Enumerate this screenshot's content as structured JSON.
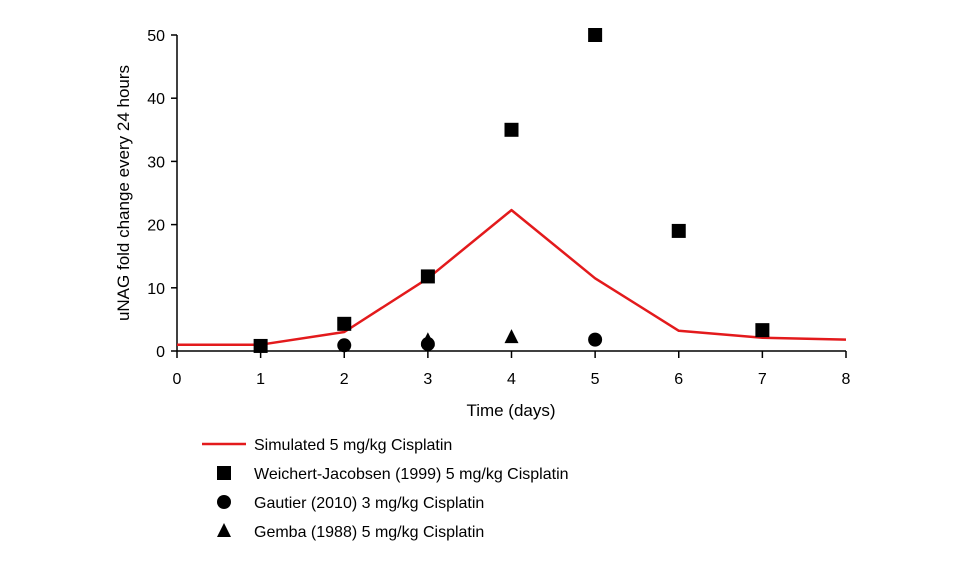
{
  "chart_data": {
    "type": "scatter",
    "title": "",
    "xlabel": "Time (days)",
    "ylabel": "uNAG fold change every 24 hours",
    "xlim": [
      0,
      8
    ],
    "ylim": [
      0,
      50
    ],
    "xticks": [
      "0",
      "1",
      "2",
      "3",
      "4",
      "5",
      "6",
      "7",
      "8"
    ],
    "yticks": [
      "0",
      "10",
      "20",
      "30",
      "40",
      "50"
    ],
    "grid": false,
    "legend_position": "bottom",
    "series": [
      {
        "name": "Simulated 5 mg/kg Cisplatin",
        "kind": "line",
        "color": "#e31a1c",
        "points": [
          [
            0,
            1.0
          ],
          [
            1,
            1.0
          ],
          [
            2,
            3.0
          ],
          [
            3,
            11.5
          ],
          [
            4,
            22.3
          ],
          [
            5,
            11.5
          ],
          [
            6,
            3.2
          ],
          [
            7,
            2.1
          ],
          [
            8,
            1.8
          ]
        ]
      },
      {
        "name": "Weichert-Jacobsen (1999) 5 mg/kg Cisplatin",
        "kind": "scatter",
        "marker": "square",
        "color": "#000000",
        "points": [
          [
            1,
            0.8
          ],
          [
            2,
            4.3
          ],
          [
            3,
            11.8
          ],
          [
            4,
            35.0
          ],
          [
            5,
            50.0
          ],
          [
            6,
            19.0
          ],
          [
            7,
            3.3
          ]
        ]
      },
      {
        "name": "Gautier (2010) 3 mg/kg Cisplatin",
        "kind": "scatter",
        "marker": "circle",
        "color": "#000000",
        "points": [
          [
            2,
            0.9
          ],
          [
            3,
            1.1
          ],
          [
            5,
            1.8
          ]
        ]
      },
      {
        "name": "Gemba (1988) 5 mg/kg Cisplatin",
        "kind": "scatter",
        "marker": "triangle",
        "color": "#000000",
        "points": [
          [
            3,
            1.7
          ],
          [
            4,
            2.2
          ]
        ]
      }
    ]
  }
}
